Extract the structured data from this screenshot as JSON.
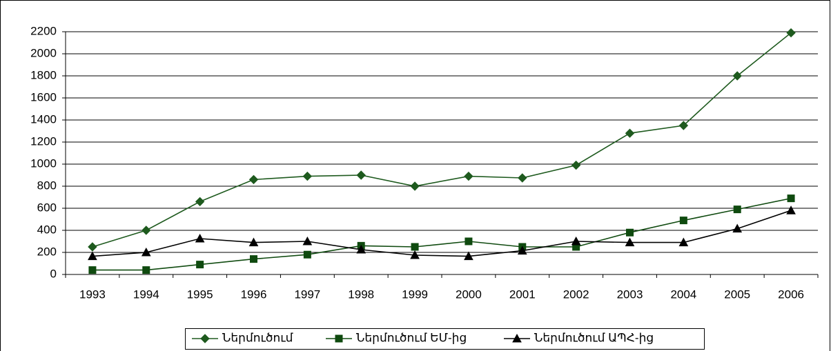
{
  "chart_data": {
    "type": "line",
    "categories": [
      "1993",
      "1994",
      "1995",
      "1996",
      "1997",
      "1998",
      "1999",
      "2000",
      "2001",
      "2002",
      "2003",
      "2004",
      "2005",
      "2006"
    ],
    "series": [
      {
        "name": "Ներմուծում",
        "color": "#1e5a1e",
        "marker": "diamond",
        "values": [
          250,
          400,
          660,
          860,
          890,
          900,
          800,
          890,
          875,
          990,
          1280,
          1350,
          1800,
          2190
        ]
      },
      {
        "name": "Ներմուծում ԵՄ-ից",
        "color": "#0f4a0f",
        "marker": "square",
        "values": [
          40,
          40,
          90,
          140,
          180,
          260,
          250,
          300,
          250,
          250,
          380,
          490,
          590,
          690
        ]
      },
      {
        "name": "Ներմուծում ԱՊՀ-ից",
        "color": "#000000",
        "marker": "triangle",
        "values": [
          165,
          200,
          325,
          290,
          300,
          225,
          175,
          165,
          215,
          300,
          290,
          290,
          415,
          580
        ]
      }
    ],
    "ylim": [
      0,
      2200
    ],
    "yticks": [
      0,
      200,
      400,
      600,
      800,
      1000,
      1200,
      1400,
      1600,
      1800,
      2000,
      2200
    ],
    "grid": true,
    "legend": "bottom"
  }
}
